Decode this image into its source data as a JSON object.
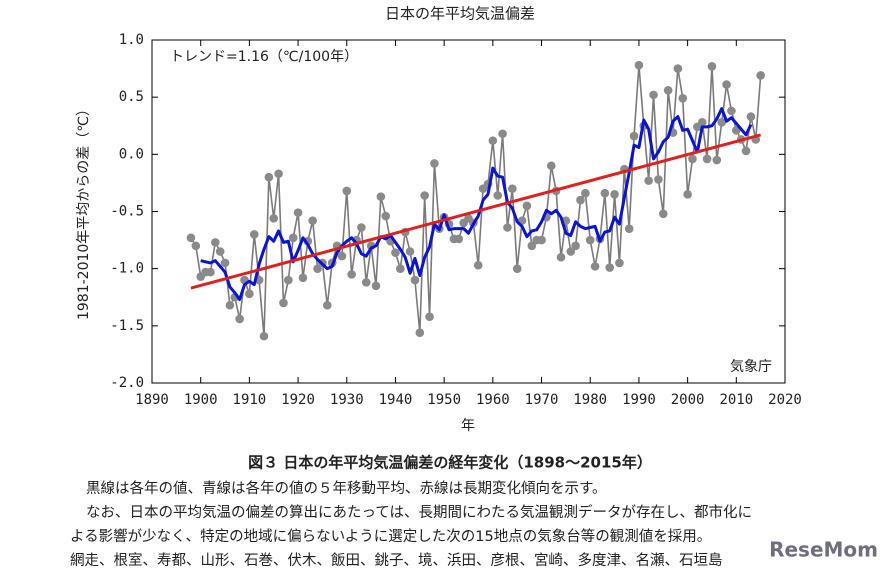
{
  "chart_data": {
    "type": "line",
    "title": "日本の年平均気温偏差",
    "ylabel": "1981-2010年平均からの差（℃）",
    "xlabel": "年",
    "annotation": "トレンド=1.16（℃/100年）",
    "source": "気象庁",
    "x": [
      1898,
      1899,
      1900,
      1901,
      1902,
      1903,
      1904,
      1905,
      1906,
      1907,
      1908,
      1909,
      1910,
      1911,
      1912,
      1913,
      1914,
      1915,
      1916,
      1917,
      1918,
      1919,
      1920,
      1921,
      1922,
      1923,
      1924,
      1925,
      1926,
      1927,
      1928,
      1929,
      1930,
      1931,
      1932,
      1933,
      1934,
      1935,
      1936,
      1937,
      1938,
      1939,
      1940,
      1941,
      1942,
      1943,
      1944,
      1945,
      1946,
      1947,
      1948,
      1949,
      1950,
      1951,
      1952,
      1953,
      1954,
      1955,
      1956,
      1957,
      1958,
      1959,
      1960,
      1961,
      1962,
      1963,
      1964,
      1965,
      1966,
      1967,
      1968,
      1969,
      1970,
      1971,
      1972,
      1973,
      1974,
      1975,
      1976,
      1977,
      1978,
      1979,
      1980,
      1981,
      1982,
      1983,
      1984,
      1985,
      1986,
      1987,
      1988,
      1989,
      1990,
      1991,
      1992,
      1993,
      1994,
      1995,
      1996,
      1997,
      1998,
      1999,
      2000,
      2001,
      2002,
      2003,
      2004,
      2005,
      2006,
      2007,
      2008,
      2009,
      2010,
      2011,
      2012,
      2013,
      2014,
      2015
    ],
    "series": [
      {
        "color": "#7a7a7a",
        "markers": true,
        "values": [
          -0.73,
          -0.8,
          -1.07,
          -1.03,
          -1.03,
          -0.77,
          -0.85,
          -0.95,
          -1.32,
          -1.25,
          -1.44,
          -1.1,
          -1.22,
          -0.7,
          -1.1,
          -1.59,
          -0.2,
          -0.56,
          -0.17,
          -1.3,
          -1.1,
          -0.73,
          -0.51,
          -1.08,
          -0.76,
          -0.58,
          -1.0,
          -0.95,
          -1.32,
          -0.95,
          -0.8,
          -0.89,
          -0.32,
          -1.05,
          -0.75,
          -0.64,
          -1.12,
          -0.8,
          -1.15,
          -0.37,
          -0.54,
          -0.76,
          -0.86,
          -1.0,
          -0.68,
          -0.85,
          -1.1,
          -1.56,
          -0.36,
          -1.42,
          -0.08,
          -0.65,
          -0.55,
          -0.61,
          -0.74,
          -0.74,
          -0.6,
          -0.56,
          -0.6,
          -0.97,
          -0.3,
          -0.26,
          0.12,
          -0.36,
          0.18,
          -0.64,
          -0.3,
          -1.0,
          -0.58,
          -0.45,
          -0.8,
          -0.75,
          -0.75,
          -0.55,
          -0.1,
          -0.32,
          -0.9,
          -0.58,
          -0.85,
          -0.8,
          -0.4,
          -0.34,
          -0.75,
          -0.98,
          -0.74,
          -0.34,
          -0.99,
          -0.35,
          -0.95,
          -0.13,
          -0.65,
          0.16,
          0.78,
          0.25,
          -0.23,
          0.52,
          -0.22,
          -0.52,
          0.56,
          0.19,
          0.75,
          0.49,
          -0.35,
          -0.04,
          0.24,
          0.28,
          -0.04,
          0.77,
          -0.05,
          0.28,
          0.61,
          0.38,
          0.21,
          0.13,
          0.03,
          0.33,
          0.13,
          0.69
        ]
      },
      {
        "color": "#0a14d8",
        "markers": false,
        "values": [
          null,
          null,
          -0.93,
          -0.94,
          -0.95,
          -0.93,
          -0.98,
          -1.03,
          -1.16,
          -1.21,
          -1.27,
          -1.14,
          -1.11,
          -1.14,
          -0.96,
          -0.83,
          -0.72,
          -0.76,
          -0.67,
          -0.77,
          -0.76,
          -0.94,
          -0.84,
          -0.73,
          -0.79,
          -0.87,
          -0.92,
          -0.96,
          -1.0,
          -0.98,
          -0.86,
          -0.8,
          -0.76,
          -0.73,
          -0.78,
          -0.87,
          -0.89,
          -0.82,
          -0.8,
          -0.72,
          -0.74,
          -0.71,
          -0.77,
          -0.83,
          -0.9,
          -1.04,
          -0.91,
          -1.06,
          -0.9,
          -0.81,
          -0.61,
          -0.66,
          -0.53,
          -0.66,
          -0.65,
          -0.65,
          -0.65,
          -0.69,
          -0.61,
          -0.54,
          -0.4,
          -0.35,
          -0.12,
          -0.19,
          -0.2,
          -0.42,
          -0.47,
          -0.59,
          -0.63,
          -0.72,
          -0.67,
          -0.66,
          -0.59,
          -0.49,
          -0.52,
          -0.49,
          -0.55,
          -0.69,
          -0.71,
          -0.59,
          -0.63,
          -0.65,
          -0.64,
          -0.63,
          -0.76,
          -0.68,
          -0.67,
          -0.55,
          -0.61,
          -0.38,
          -0.16,
          0.08,
          0.06,
          0.3,
          0.22,
          -0.04,
          0.02,
          0.11,
          0.15,
          0.29,
          0.33,
          0.21,
          0.22,
          0.12,
          0.02,
          0.24,
          0.24,
          0.25,
          0.31,
          0.4,
          0.29,
          0.32,
          0.27,
          0.22,
          0.17,
          0.26,
          null,
          null
        ]
      },
      {
        "color": "#e0201c",
        "markers": false,
        "x": [
          1898,
          2015
        ],
        "values": [
          -1.17,
          0.17
        ]
      }
    ],
    "xlim": [
      1890,
      2020
    ],
    "xticks": [
      1890,
      1900,
      1910,
      1920,
      1930,
      1940,
      1950,
      1960,
      1970,
      1980,
      1990,
      2000,
      2010,
      2020
    ],
    "ylim": [
      -2.0,
      1.0
    ],
    "yticks": [
      {
        "value": 1.0,
        "label": "1.0"
      },
      0.5,
      {
        "value": 0.0,
        "label": "0.0"
      },
      -0.5,
      {
        "value": -1.0,
        "label": "-1.0"
      },
      -1.5,
      {
        "value": -2.0,
        "label": "-2.0"
      }
    ]
  },
  "caption": "図３ 日本の年平均気温偏差の経年変化（1898〜2015年）",
  "notes": [
    "黒線は各年の値、青線は各年の値の５年移動平均、赤線は長期変化傾向を示す。",
    "なお、日本の平均気温の偏差の算出にあたっては、長期間にわたる気温観測データが存在し、都市化に",
    "よる影響が少なく、特定の地域に偏らないように選定した次の15地点の気象台等の観測値を採用。",
    "網走、根室、寿都、山形、石巻、伏木、飯田、銚子、境、浜田、彦根、宮崎、多度津、名瀬、石垣島"
  ],
  "watermark": "ReseMom"
}
